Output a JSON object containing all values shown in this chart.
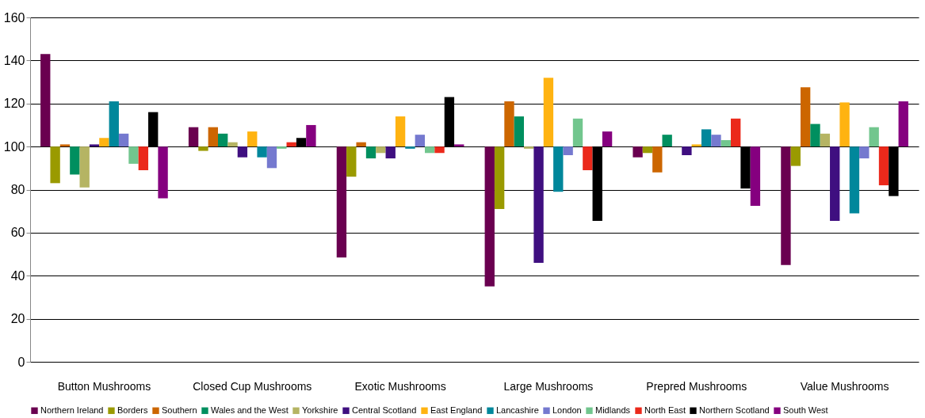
{
  "chart_data": {
    "type": "bar",
    "categories": [
      "Button Mushrooms",
      "Closed Cup Mushrooms",
      "Exotic Mushrooms",
      "Large Mushrooms",
      "Prepred Mushrooms",
      "Value Mushrooms"
    ],
    "series": [
      {
        "name": "Northern Ireland",
        "color": "#6a0050",
        "base": [
          100,
          100,
          100,
          100,
          100,
          100
        ],
        "values": [
          43,
          9,
          -51.5,
          -65,
          -5,
          -55
        ]
      },
      {
        "name": "Borders",
        "color": "#9a9a00",
        "base": [
          100,
          100,
          100,
          100,
          100,
          100
        ],
        "values": [
          -17,
          -2,
          -14,
          -29,
          -3,
          -9
        ]
      },
      {
        "name": "Southern",
        "color": "#cc6600",
        "base": [
          100,
          100,
          100,
          100,
          100,
          100
        ],
        "values": [
          1,
          9,
          2,
          21,
          -12,
          27.5
        ]
      },
      {
        "name": "Wales and the West",
        "color": "#008f5f",
        "base": [
          100,
          100,
          100,
          100,
          100,
          100
        ],
        "values": [
          -13,
          6,
          -5.5,
          14,
          5.5,
          10.5
        ]
      },
      {
        "name": "Yorkshire",
        "color": "#b5b463",
        "base": [
          100,
          100,
          100,
          100,
          null,
          100
        ],
        "values": [
          -19,
          2,
          -3,
          -1,
          null,
          6
        ]
      },
      {
        "name": "Central Scotland",
        "color": "#3f0f80",
        "base": [
          100,
          100,
          100,
          100,
          100,
          100
        ],
        "values": [
          1,
          -5,
          -5.5,
          -54,
          -4,
          -34.5
        ]
      },
      {
        "name": "East England",
        "color": "#ffb311",
        "base": [
          100,
          100,
          100,
          100,
          100,
          100
        ],
        "values": [
          4,
          7,
          14,
          32,
          1,
          20.5
        ]
      },
      {
        "name": "Lancashire",
        "color": "#00879b",
        "base": [
          100,
          100,
          100,
          100,
          100,
          100
        ],
        "values": [
          21,
          -5,
          -1,
          -21,
          8,
          -31
        ]
      },
      {
        "name": "London",
        "color": "#7579cf",
        "base": [
          100,
          100,
          100,
          100,
          100,
          100
        ],
        "values": [
          6,
          -10,
          5.5,
          -4,
          5.5,
          -5.5
        ]
      },
      {
        "name": "Midlands",
        "color": "#72c68e",
        "base": [
          100,
          100,
          100,
          100,
          100,
          100
        ],
        "values": [
          -8,
          -1,
          -3,
          13,
          3,
          9
        ]
      },
      {
        "name": "North East",
        "color": "#eb291b",
        "base": [
          100,
          100,
          100,
          100,
          100,
          100
        ],
        "values": [
          -11,
          2,
          -3,
          -11,
          13,
          -18
        ]
      },
      {
        "name": "Northern Scotland",
        "color": "#000000",
        "base": [
          100,
          100,
          100,
          100,
          100,
          100
        ],
        "values": [
          16,
          4,
          23,
          -34.5,
          -19.5,
          -23
        ]
      },
      {
        "name": "South West",
        "color": "#85007f",
        "base": [
          100,
          100,
          100,
          100,
          100,
          100
        ],
        "values": [
          -24,
          10,
          1,
          7,
          -27.5,
          21
        ]
      }
    ],
    "ylim": [
      0,
      160
    ],
    "yticks": [
      0,
      20,
      40,
      60,
      80,
      100,
      120,
      140,
      160
    ],
    "grid": "y",
    "legend": "bottom"
  }
}
